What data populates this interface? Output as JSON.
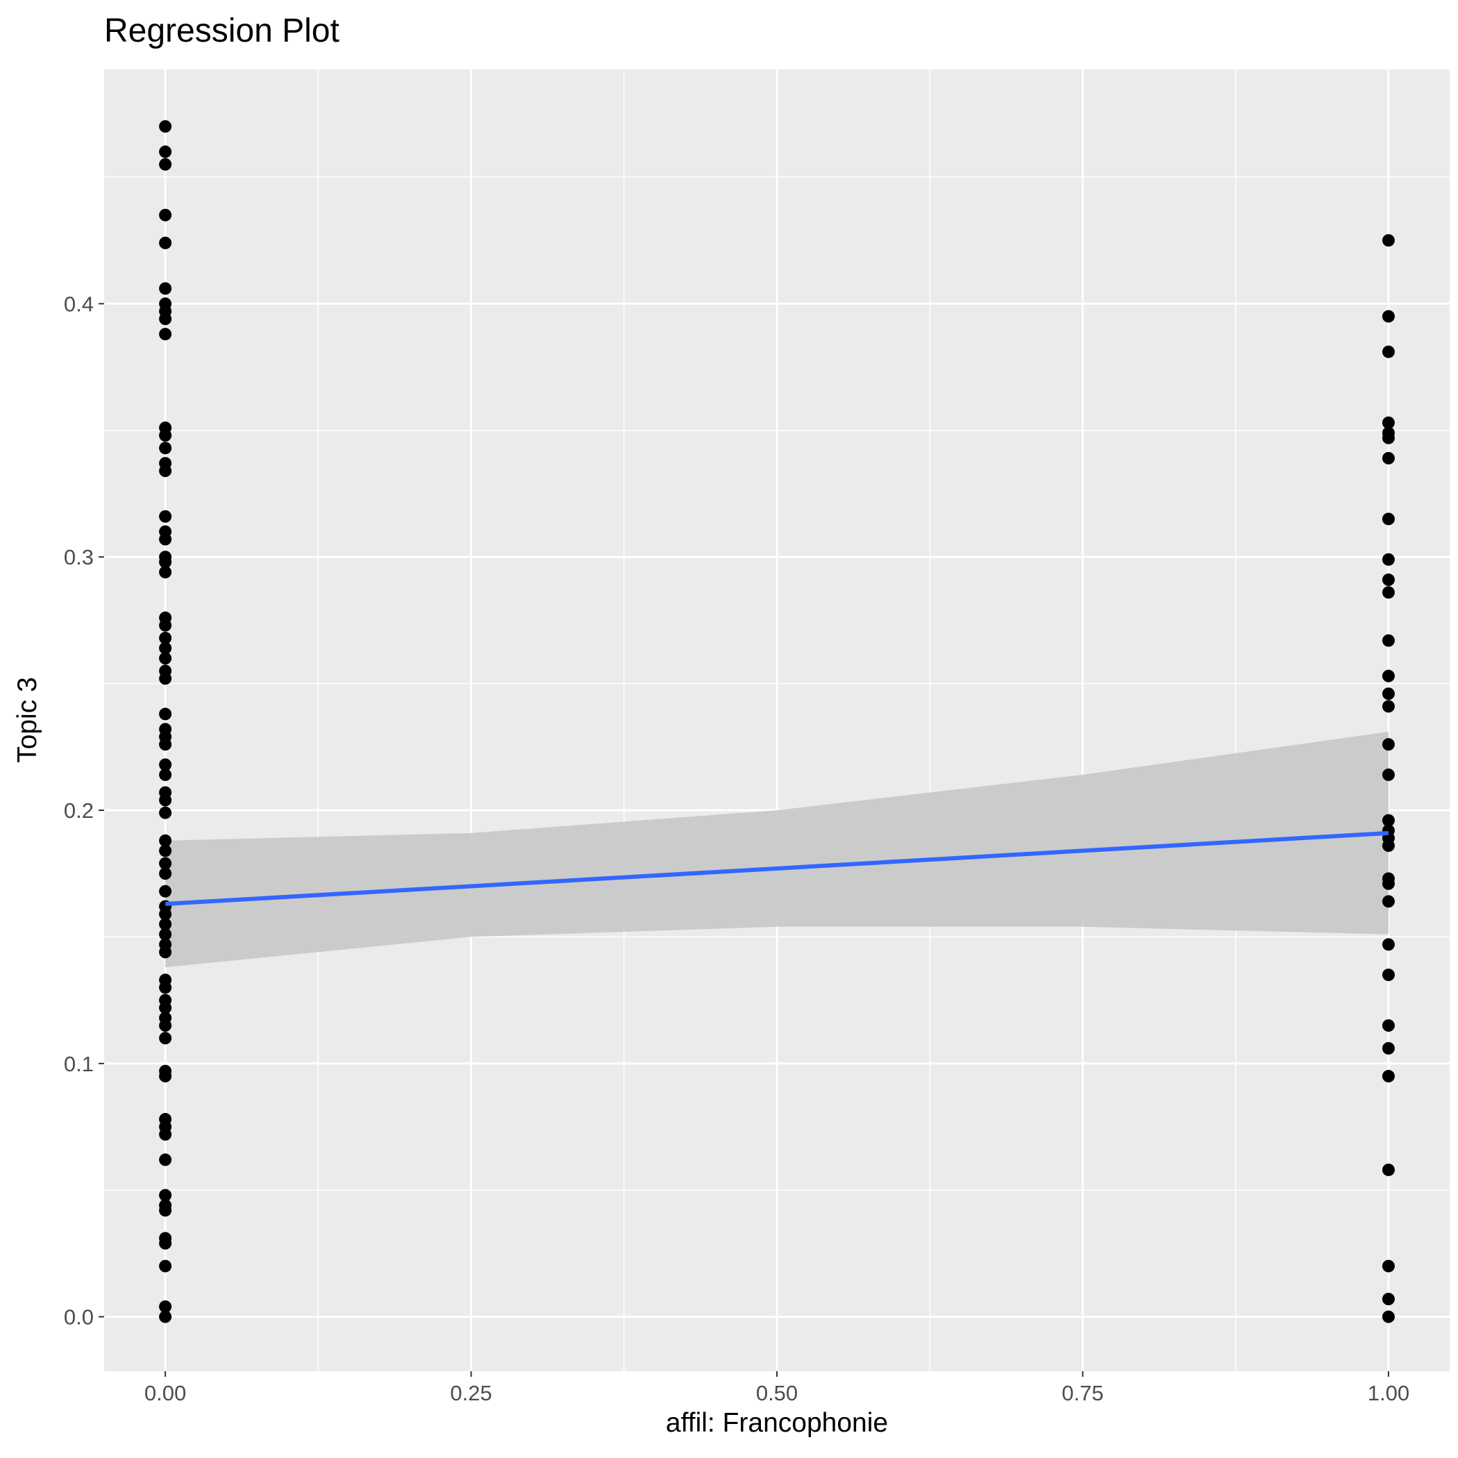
{
  "chart_data": {
    "type": "scatter",
    "title": "Regression Plot",
    "xlabel": "affil: Francophonie",
    "ylabel": "Topic 3",
    "xlim": [
      -0.05,
      1.05
    ],
    "ylim": [
      -0.0215,
      0.4925
    ],
    "x_ticks": [
      0.0,
      0.25,
      0.5,
      0.75,
      1.0
    ],
    "x_tick_labels": [
      "0.00",
      "0.25",
      "0.50",
      "0.75",
      "1.00"
    ],
    "y_ticks": [
      0.0,
      0.1,
      0.2,
      0.3,
      0.4
    ],
    "y_tick_labels": [
      "0.0",
      "0.1",
      "0.2",
      "0.3",
      "0.4"
    ],
    "grid": true,
    "colors": {
      "panel_background": "#ebebeb",
      "grid": "#ffffff",
      "points": "#000000",
      "fit_line": "#3366ff",
      "confidence_band": "#c8c8c8"
    },
    "points": {
      "x0": [
        0.47,
        0.46,
        0.455,
        0.435,
        0.424,
        0.406,
        0.4,
        0.397,
        0.394,
        0.388,
        0.351,
        0.348,
        0.343,
        0.337,
        0.334,
        0.316,
        0.31,
        0.307,
        0.3,
        0.298,
        0.294,
        0.276,
        0.273,
        0.268,
        0.264,
        0.26,
        0.255,
        0.252,
        0.238,
        0.232,
        0.229,
        0.226,
        0.218,
        0.214,
        0.207,
        0.204,
        0.199,
        0.188,
        0.184,
        0.179,
        0.175,
        0.168,
        0.162,
        0.159,
        0.155,
        0.151,
        0.147,
        0.144,
        0.133,
        0.13,
        0.125,
        0.122,
        0.118,
        0.115,
        0.11,
        0.097,
        0.095,
        0.078,
        0.075,
        0.072,
        0.062,
        0.048,
        0.044,
        0.042,
        0.031,
        0.029,
        0.02,
        0.004,
        0.0
      ],
      "x1": [
        0.425,
        0.395,
        0.381,
        0.353,
        0.349,
        0.347,
        0.339,
        0.315,
        0.299,
        0.291,
        0.286,
        0.267,
        0.253,
        0.246,
        0.241,
        0.226,
        0.214,
        0.196,
        0.192,
        0.189,
        0.186,
        0.173,
        0.171,
        0.164,
        0.147,
        0.135,
        0.115,
        0.106,
        0.095,
        0.058,
        0.02,
        0.007,
        0.0
      ]
    },
    "fit_line": {
      "x": [
        0.0,
        1.0
      ],
      "y": [
        0.163,
        0.191
      ]
    },
    "confidence_band": {
      "x": [
        0.0,
        0.25,
        0.5,
        0.75,
        1.0
      ],
      "upper": [
        0.188,
        0.191,
        0.2,
        0.214,
        0.231
      ],
      "lower": [
        0.138,
        0.15,
        0.154,
        0.154,
        0.151
      ]
    }
  }
}
